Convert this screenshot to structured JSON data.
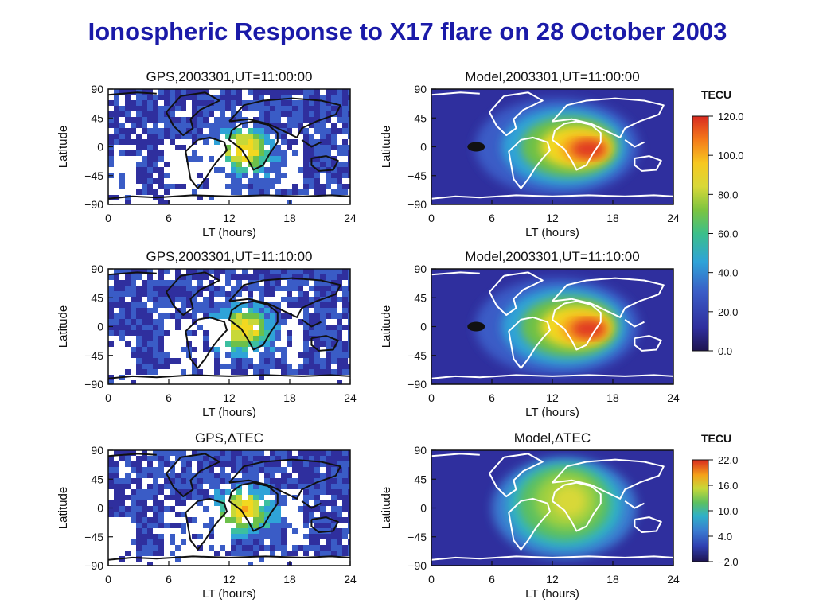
{
  "slide_title": "Ionospheric Response to X17 flare on 28 October 2003",
  "chart_data": [
    {
      "type": "heatmap",
      "title": "GPS,2003301,UT=11:00:00",
      "xlabel": "LT (hours)",
      "ylabel": "Latitude",
      "xlim": [
        0,
        24
      ],
      "ylim": [
        -90,
        90
      ],
      "xticks": [
        "0",
        "6",
        "12",
        "18",
        "24"
      ],
      "yticks": [
        "90",
        "45",
        "0",
        "-45",
        "-90"
      ],
      "colorbar": "cb1",
      "style": "gps"
    },
    {
      "type": "heatmap",
      "title": "Model,2003301,UT=11:00:00",
      "xlabel": "LT (hours)",
      "ylabel": "Latitude",
      "xlim": [
        0,
        24
      ],
      "ylim": [
        -90,
        90
      ],
      "xticks": [
        "0",
        "6",
        "12",
        "18",
        "24"
      ],
      "yticks": [
        "90",
        "45",
        "0",
        "-45",
        "-90"
      ],
      "colorbar": "cb1",
      "style": "model"
    },
    {
      "type": "heatmap",
      "title": "GPS,2003301,UT=11:10:00",
      "xlabel": "LT (hours)",
      "ylabel": "Latitude",
      "xlim": [
        0,
        24
      ],
      "ylim": [
        -90,
        90
      ],
      "xticks": [
        "0",
        "6",
        "12",
        "18",
        "24"
      ],
      "yticks": [
        "90",
        "45",
        "0",
        "-45",
        "-90"
      ],
      "colorbar": "cb1",
      "style": "gps"
    },
    {
      "type": "heatmap",
      "title": "Model,2003301,UT=11:10:00",
      "xlabel": "LT (hours)",
      "ylabel": "Latitude",
      "xlim": [
        0,
        24
      ],
      "ylim": [
        -90,
        90
      ],
      "xticks": [
        "0",
        "6",
        "12",
        "18",
        "24"
      ],
      "yticks": [
        "90",
        "45",
        "0",
        "-45",
        "-90"
      ],
      "colorbar": "cb1",
      "style": "model"
    },
    {
      "type": "heatmap",
      "title": "GPS,ΔTEC",
      "xlabel": "LT (hours)",
      "ylabel": "Latitude",
      "xlim": [
        0,
        24
      ],
      "ylim": [
        -90,
        90
      ],
      "xticks": [
        "0",
        "6",
        "12",
        "18",
        "24"
      ],
      "yticks": [
        "90",
        "45",
        "0",
        "-45",
        "-90"
      ],
      "colorbar": "cb2",
      "style": "gps"
    },
    {
      "type": "heatmap",
      "title": "Model,ΔTEC",
      "xlabel": "LT (hours)",
      "ylabel": "Latitude",
      "xlim": [
        0,
        24
      ],
      "ylim": [
        -90,
        90
      ],
      "xticks": [
        "0",
        "6",
        "12",
        "18",
        "24"
      ],
      "yticks": [
        "90",
        "45",
        "0",
        "-45",
        "-90"
      ],
      "colorbar": "cb2",
      "style": "dtec"
    }
  ],
  "colorbars": {
    "cb1": {
      "unit": "TECU",
      "range": [
        0,
        120
      ],
      "ticks": [
        "120.0",
        "100.0",
        "80.0",
        "60.0",
        "40.0",
        "20.0",
        "0.0"
      ]
    },
    "cb2": {
      "unit": "TECU",
      "range": [
        -2,
        22
      ],
      "ticks": [
        "22.0",
        "16.0",
        "10.0",
        "4.0",
        "−2.0"
      ]
    }
  },
  "colors": {
    "title": "#1a1aa8",
    "colormap": [
      "#2a1f6e",
      "#2f2f9e",
      "#3a5cc6",
      "#2fa3d8",
      "#3cbfa0",
      "#6cc04a",
      "#c8d838",
      "#f2d820",
      "#f7a21a",
      "#ee5a20",
      "#d82a20"
    ]
  }
}
